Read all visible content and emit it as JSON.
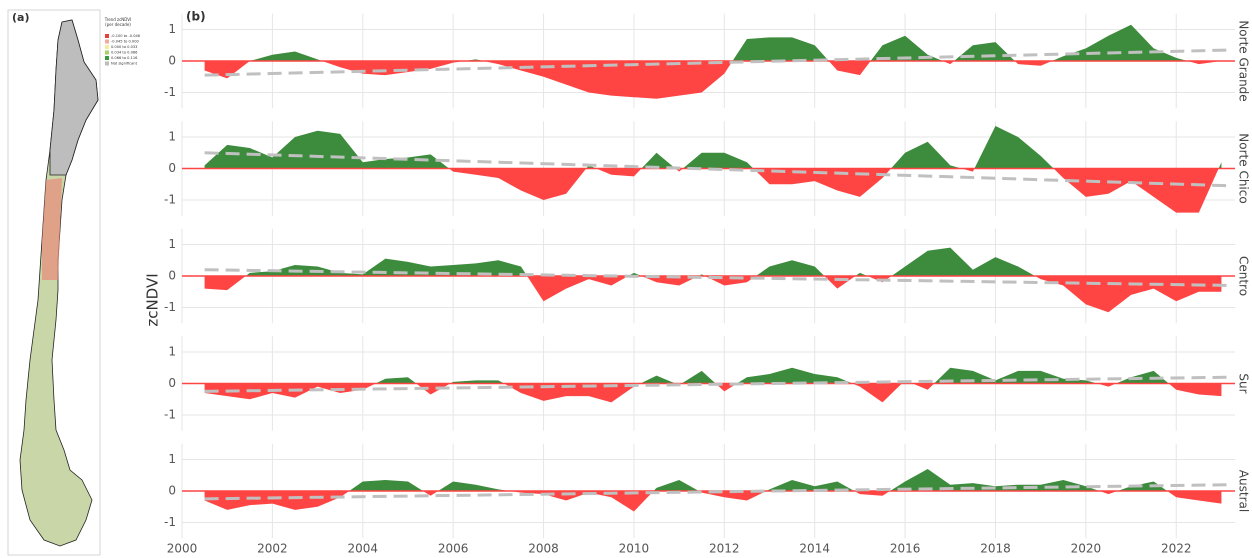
{
  "panel_a": {
    "label": "(a)",
    "legend_title": "Trend zcNDVI",
    "legend_subtitle": "(per decade)",
    "legend_items": [
      {
        "label": "-0.100 to -0.046",
        "color": "#e8413c"
      },
      {
        "label": "-0.045 to 0.000",
        "color": "#f3a99b"
      },
      {
        "label": "0.000 to 0.033",
        "color": "#f1ee9c"
      },
      {
        "label": "0.034 to 0.066",
        "color": "#a9d16d"
      },
      {
        "label": "0.066 to 0.116",
        "color": "#3f9a3f"
      },
      {
        "label": "Not significant",
        "color": "#bdbdbd"
      }
    ]
  },
  "panel_b": {
    "label": "(b)",
    "ylabel": "zcNDVI",
    "xlim": [
      2000,
      2023.3
    ],
    "xticks": [
      2000,
      2002,
      2004,
      2006,
      2008,
      2010,
      2012,
      2014,
      2016,
      2018,
      2020,
      2022
    ]
  },
  "chart_data": [
    {
      "type": "area",
      "panel": "Norte Grande",
      "ylim": [
        -1.5,
        1.5
      ],
      "yticks": [
        -1,
        0,
        1
      ],
      "positive_color": "#3d8b3d",
      "negative_color": "#ff4444",
      "x": [
        2000.5,
        2001,
        2001.5,
        2002,
        2002.5,
        2003,
        2003.5,
        2004,
        2004.5,
        2005,
        2005.5,
        2006,
        2006.5,
        2007,
        2007.5,
        2008,
        2008.5,
        2009,
        2009.5,
        2010,
        2010.5,
        2011,
        2011.5,
        2012,
        2012.5,
        2013,
        2013.5,
        2014,
        2014.5,
        2015,
        2015.5,
        2016,
        2016.5,
        2017,
        2017.5,
        2018,
        2018.5,
        2019,
        2019.5,
        2020,
        2020.5,
        2021,
        2021.5,
        2022,
        2022.5,
        2023
      ],
      "values": [
        -0.3,
        -0.55,
        0.0,
        0.2,
        0.3,
        0.05,
        -0.2,
        -0.4,
        -0.45,
        -0.35,
        -0.25,
        -0.05,
        0.05,
        -0.1,
        -0.3,
        -0.5,
        -0.75,
        -1.0,
        -1.1,
        -1.15,
        -1.2,
        -1.1,
        -1.0,
        -0.4,
        0.7,
        0.75,
        0.75,
        0.5,
        -0.3,
        -0.45,
        0.5,
        0.8,
        0.2,
        -0.1,
        0.5,
        0.6,
        -0.1,
        -0.15,
        0.15,
        0.4,
        0.8,
        1.15,
        0.4,
        0.1,
        -0.1,
        0.0
      ],
      "trend": {
        "x": [
          2000.5,
          2023.2
        ],
        "values": [
          -0.45,
          0.35
        ],
        "color": "#c0c0c0"
      }
    },
    {
      "type": "area",
      "panel": "Norte Chico",
      "ylim": [
        -1.5,
        1.5
      ],
      "yticks": [
        -1,
        0,
        1
      ],
      "positive_color": "#3d8b3d",
      "negative_color": "#ff4444",
      "x": [
        2000.5,
        2001,
        2001.5,
        2002,
        2002.5,
        2003,
        2003.5,
        2004,
        2004.5,
        2005,
        2005.5,
        2006,
        2006.5,
        2007,
        2007.5,
        2008,
        2008.5,
        2009,
        2009.5,
        2010,
        2010.5,
        2011,
        2011.5,
        2012,
        2012.5,
        2013,
        2013.5,
        2014,
        2014.5,
        2015,
        2015.5,
        2016,
        2016.5,
        2017,
        2017.5,
        2018,
        2018.5,
        2019,
        2019.5,
        2020,
        2020.5,
        2021,
        2021.5,
        2022,
        2022.5,
        2023
      ],
      "values": [
        0.1,
        0.75,
        0.65,
        0.35,
        1.0,
        1.2,
        1.1,
        0.2,
        0.3,
        0.35,
        0.45,
        -0.1,
        -0.2,
        -0.3,
        -0.7,
        -1.0,
        -0.8,
        0.1,
        -0.2,
        -0.25,
        0.5,
        -0.1,
        0.5,
        0.5,
        0.2,
        -0.5,
        -0.5,
        -0.4,
        -0.7,
        -0.9,
        -0.3,
        0.5,
        0.85,
        0.1,
        -0.1,
        1.35,
        1.0,
        0.4,
        -0.3,
        -0.9,
        -0.8,
        -0.4,
        -0.9,
        -1.4,
        -1.4,
        0.2
      ],
      "trend": {
        "x": [
          2000.5,
          2023.2
        ],
        "values": [
          0.5,
          -0.55
        ],
        "color": "#c0c0c0"
      }
    },
    {
      "type": "area",
      "panel": "Centro",
      "ylim": [
        -1.5,
        1.5
      ],
      "yticks": [
        -1,
        0,
        1
      ],
      "positive_color": "#3d8b3d",
      "negative_color": "#ff4444",
      "x": [
        2000.5,
        2001,
        2001.5,
        2002,
        2002.5,
        2003,
        2003.5,
        2004,
        2004.5,
        2005,
        2005.5,
        2006,
        2006.5,
        2007,
        2007.5,
        2008,
        2008.5,
        2009,
        2009.5,
        2010,
        2010.5,
        2011,
        2011.5,
        2012,
        2012.5,
        2013,
        2013.5,
        2014,
        2014.5,
        2015,
        2015.5,
        2016,
        2016.5,
        2017,
        2017.5,
        2018,
        2018.5,
        2019,
        2019.5,
        2020,
        2020.5,
        2021,
        2021.5,
        2022,
        2022.5,
        2023
      ],
      "values": [
        -0.4,
        -0.45,
        0.1,
        0.15,
        0.35,
        0.3,
        0.1,
        0.05,
        0.55,
        0.45,
        0.3,
        0.35,
        0.4,
        0.5,
        0.3,
        -0.8,
        -0.4,
        -0.1,
        -0.3,
        0.1,
        -0.2,
        -0.3,
        0.05,
        -0.3,
        -0.2,
        0.3,
        0.5,
        0.3,
        -0.4,
        0.1,
        -0.2,
        0.3,
        0.8,
        0.9,
        0.2,
        0.6,
        0.3,
        -0.1,
        -0.3,
        -0.9,
        -1.15,
        -0.6,
        -0.4,
        -0.8,
        -0.5,
        -0.5
      ],
      "trend": {
        "x": [
          2000.5,
          2023.2
        ],
        "values": [
          0.2,
          -0.3
        ],
        "color": "#c0c0c0"
      }
    },
    {
      "type": "area",
      "panel": "Sur",
      "ylim": [
        -1.5,
        1.5
      ],
      "yticks": [
        -1,
        0,
        1
      ],
      "positive_color": "#3d8b3d",
      "negative_color": "#ff4444",
      "x": [
        2000.5,
        2001,
        2001.5,
        2002,
        2002.5,
        2003,
        2003.5,
        2004,
        2004.5,
        2005,
        2005.5,
        2006,
        2006.5,
        2007,
        2007.5,
        2008,
        2008.5,
        2009,
        2009.5,
        2010,
        2010.5,
        2011,
        2011.5,
        2012,
        2012.5,
        2013,
        2013.5,
        2014,
        2014.5,
        2015,
        2015.5,
        2016,
        2016.5,
        2017,
        2017.5,
        2018,
        2018.5,
        2019,
        2019.5,
        2020,
        2020.5,
        2021,
        2021.5,
        2022,
        2022.5,
        2023
      ],
      "values": [
        -0.3,
        -0.4,
        -0.5,
        -0.3,
        -0.45,
        -0.1,
        -0.3,
        -0.2,
        0.15,
        0.2,
        -0.35,
        0.05,
        0.1,
        0.1,
        -0.3,
        -0.55,
        -0.4,
        -0.4,
        -0.6,
        -0.1,
        0.25,
        -0.05,
        0.4,
        -0.25,
        0.2,
        0.3,
        0.5,
        0.3,
        0.2,
        -0.1,
        -0.6,
        0.1,
        -0.2,
        0.5,
        0.4,
        0.1,
        0.4,
        0.4,
        0.15,
        0.1,
        -0.1,
        0.2,
        0.4,
        -0.2,
        -0.35,
        -0.4
      ],
      "trend": {
        "x": [
          2000.5,
          2023.2
        ],
        "values": [
          -0.25,
          0.2
        ],
        "color": "#c0c0c0"
      }
    },
    {
      "type": "area",
      "panel": "Austral",
      "ylim": [
        -1.5,
        1.5
      ],
      "yticks": [
        -1,
        0,
        1
      ],
      "positive_color": "#3d8b3d",
      "negative_color": "#ff4444",
      "x": [
        2000.5,
        2001,
        2001.5,
        2002,
        2002.5,
        2003,
        2003.5,
        2004,
        2004.5,
        2005,
        2005.5,
        2006,
        2006.5,
        2007,
        2007.5,
        2008,
        2008.5,
        2009,
        2009.5,
        2010,
        2010.5,
        2011,
        2011.5,
        2012,
        2012.5,
        2013,
        2013.5,
        2014,
        2014.5,
        2015,
        2015.5,
        2016,
        2016.5,
        2017,
        2017.5,
        2018,
        2018.5,
        2019,
        2019.5,
        2020,
        2020.5,
        2021,
        2021.5,
        2022,
        2022.5,
        2023
      ],
      "values": [
        -0.3,
        -0.6,
        -0.45,
        -0.4,
        -0.6,
        -0.5,
        -0.2,
        0.3,
        0.35,
        0.3,
        -0.15,
        0.3,
        0.2,
        0.05,
        -0.05,
        -0.1,
        -0.3,
        -0.05,
        -0.2,
        -0.65,
        0.1,
        0.35,
        -0.05,
        -0.2,
        -0.3,
        0.05,
        0.35,
        0.15,
        0.3,
        -0.1,
        -0.15,
        0.3,
        0.7,
        0.2,
        0.25,
        0.15,
        0.2,
        0.2,
        0.35,
        0.15,
        -0.1,
        0.15,
        0.3,
        -0.2,
        -0.3,
        -0.4
      ],
      "trend": {
        "x": [
          2000.5,
          2023.2
        ],
        "values": [
          -0.25,
          0.2
        ],
        "color": "#c0c0c0"
      }
    }
  ]
}
